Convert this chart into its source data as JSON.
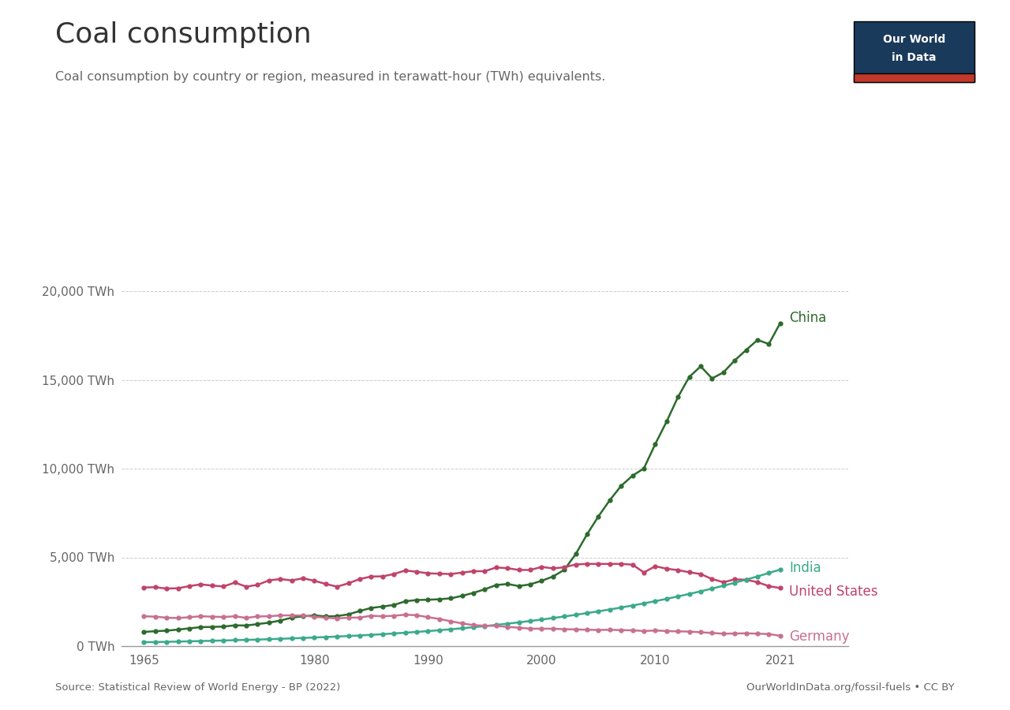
{
  "title": "Coal consumption",
  "subtitle": "Coal consumption by country or region, measured in terawatt-hour (TWh) equivalents.",
  "source_left": "Source: Statistical Review of World Energy - BP (2022)",
  "source_right": "OurWorldInData.org/fossil-fuels • CC BY",
  "ylim": [
    0,
    26000
  ],
  "yticks": [
    0,
    5000,
    10000,
    15000,
    20000
  ],
  "ytick_labels": [
    "0 TWh",
    "5,000 TWh",
    "10,000 TWh",
    "15,000 TWh",
    "20,000 TWh"
  ],
  "xticks": [
    1965,
    1980,
    1990,
    2000,
    2010,
    2021
  ],
  "background_color": "#ffffff",
  "grid_color": "#cccccc",
  "title_color": "#333333",
  "subtitle_color": "#666666",
  "owid_box_bg": "#1a3a5c",
  "owid_box_red": "#c0392b",
  "colors": {
    "China": "#2d6a2d",
    "United States": "#c0436a",
    "India": "#3aaa8a",
    "Germany": "#c87090"
  },
  "years": [
    1965,
    1966,
    1967,
    1968,
    1969,
    1970,
    1971,
    1972,
    1973,
    1974,
    1975,
    1976,
    1977,
    1978,
    1979,
    1980,
    1981,
    1982,
    1983,
    1984,
    1985,
    1986,
    1987,
    1988,
    1989,
    1990,
    1991,
    1992,
    1993,
    1994,
    1995,
    1996,
    1997,
    1998,
    1999,
    2000,
    2001,
    2002,
    2003,
    2004,
    2005,
    2006,
    2007,
    2008,
    2009,
    2010,
    2011,
    2012,
    2013,
    2014,
    2015,
    2016,
    2017,
    2018,
    2019,
    2020,
    2021
  ],
  "China": [
    800,
    840,
    870,
    930,
    1000,
    1070,
    1080,
    1100,
    1170,
    1160,
    1240,
    1320,
    1440,
    1600,
    1680,
    1730,
    1670,
    1690,
    1790,
    1980,
    2150,
    2230,
    2320,
    2520,
    2600,
    2610,
    2640,
    2690,
    2830,
    3000,
    3200,
    3440,
    3500,
    3380,
    3480,
    3680,
    3920,
    4300,
    5180,
    6300,
    7310,
    8220,
    9030,
    9600,
    10010,
    11380,
    12650,
    14030,
    15170,
    15760,
    15080,
    15420,
    16100,
    16680,
    17250,
    17020,
    18200
  ],
  "United_States": [
    3300,
    3320,
    3240,
    3260,
    3380,
    3480,
    3410,
    3360,
    3580,
    3350,
    3450,
    3700,
    3780,
    3700,
    3820,
    3680,
    3500,
    3350,
    3540,
    3780,
    3920,
    3930,
    4060,
    4260,
    4190,
    4100,
    4080,
    4060,
    4140,
    4220,
    4220,
    4430,
    4390,
    4290,
    4290,
    4460,
    4380,
    4440,
    4600,
    4630,
    4630,
    4630,
    4630,
    4590,
    4150,
    4500,
    4360,
    4280,
    4160,
    4060,
    3780,
    3600,
    3760,
    3740,
    3600,
    3380,
    3270
  ],
  "India": [
    220,
    230,
    240,
    255,
    270,
    285,
    300,
    315,
    335,
    350,
    368,
    390,
    412,
    435,
    458,
    485,
    510,
    538,
    568,
    600,
    635,
    672,
    712,
    754,
    798,
    845,
    895,
    948,
    1005,
    1065,
    1128,
    1194,
    1265,
    1338,
    1415,
    1496,
    1581,
    1670,
    1763,
    1860,
    1960,
    2065,
    2174,
    2288,
    2408,
    2533,
    2663,
    2799,
    2940,
    3087,
    3241,
    3402,
    3570,
    3745,
    3927,
    4117,
    4314
  ],
  "Germany": [
    1680,
    1660,
    1600,
    1580,
    1630,
    1680,
    1660,
    1640,
    1680,
    1590,
    1670,
    1680,
    1730,
    1730,
    1720,
    1650,
    1600,
    1560,
    1600,
    1610,
    1710,
    1680,
    1710,
    1770,
    1740,
    1630,
    1530,
    1400,
    1280,
    1180,
    1150,
    1140,
    1080,
    1040,
    980,
    980,
    980,
    950,
    940,
    920,
    910,
    920,
    900,
    890,
    850,
    880,
    850,
    830,
    820,
    780,
    740,
    700,
    710,
    720,
    700,
    680,
    580
  ]
}
